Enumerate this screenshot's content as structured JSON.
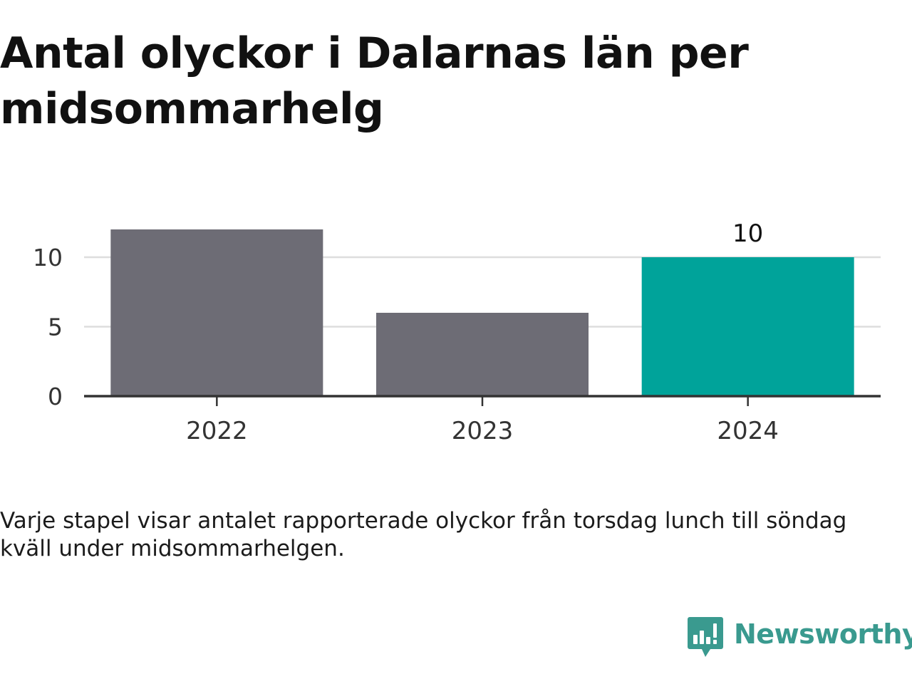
{
  "title": "Antal olyckor i Dalarnas län per midsommarhelg",
  "caption": "Varje stapel visar antalet rapporterade olyckor från torsdag lunch till söndag kväll under midsommarhelgen.",
  "brand": {
    "name": "Newsworthy",
    "logo_icon": "bar-chart-speech-bubble-icon",
    "color": "#3a9a8f"
  },
  "chart_data": {
    "type": "bar",
    "categories": [
      "2022",
      "2023",
      "2024"
    ],
    "values": [
      12,
      6,
      10
    ],
    "yticks": [
      0,
      5,
      10
    ],
    "ylim": [
      0,
      12
    ],
    "grid": true,
    "data_labels": [
      null,
      null,
      "10"
    ],
    "colors": [
      "#6d6c75",
      "#6d6c75",
      "#00a39a"
    ],
    "gridline_color": "#dddddd",
    "axis_color": "#333333"
  }
}
